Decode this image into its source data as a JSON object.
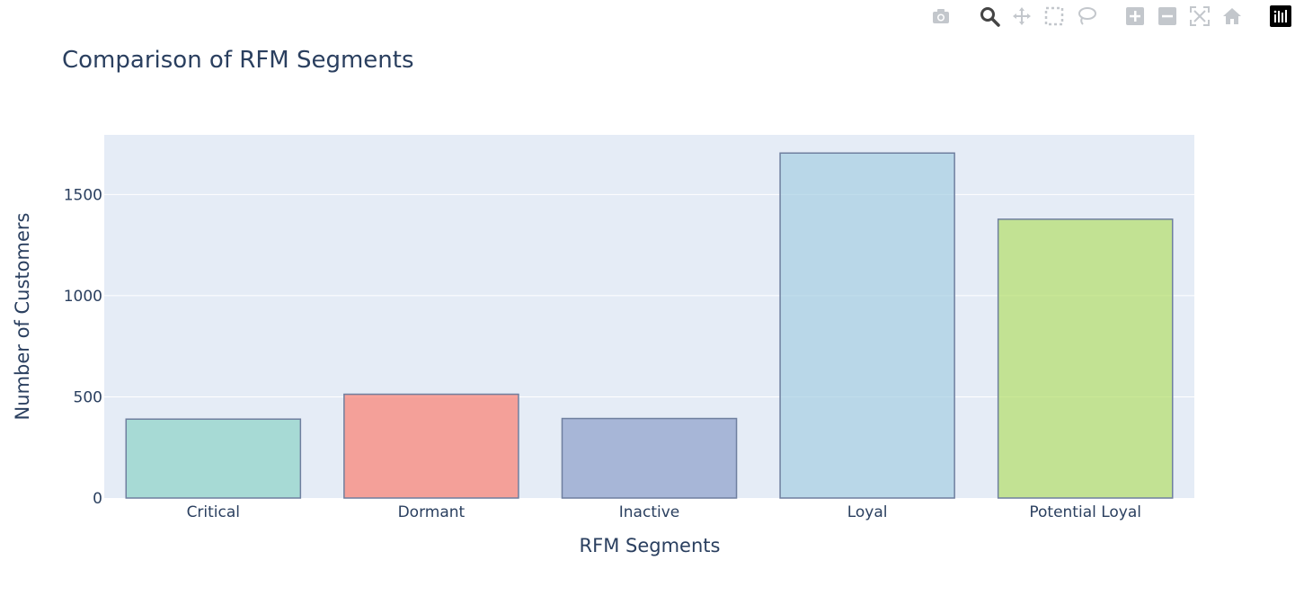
{
  "modebar": {
    "buttons": [
      {
        "name": "camera-icon",
        "title": "Download plot as a png"
      },
      {
        "name": "zoom-icon",
        "title": "Zoom",
        "active": true
      },
      {
        "name": "pan-icon",
        "title": "Pan"
      },
      {
        "name": "box-select-icon",
        "title": "Box Select"
      },
      {
        "name": "lasso-select-icon",
        "title": "Lasso Select"
      },
      {
        "name": "zoom-in-icon",
        "title": "Zoom in"
      },
      {
        "name": "zoom-out-icon",
        "title": "Zoom out"
      },
      {
        "name": "autoscale-icon",
        "title": "Autoscale"
      },
      {
        "name": "reset-axes-icon",
        "title": "Reset axes"
      },
      {
        "name": "plotly-logo-icon",
        "title": "Produced with Plotly"
      }
    ]
  },
  "chart_data": {
    "type": "bar",
    "title": "Comparison of RFM Segments",
    "xlabel": "RFM Segments",
    "ylabel": "Number of Customers",
    "categories": [
      "Critical",
      "Dormant",
      "Inactive",
      "Loyal",
      "Potential Loyal"
    ],
    "values": [
      390,
      513,
      393,
      1705,
      1378
    ],
    "colors": [
      "#8dd3c7",
      "#fb8072",
      "#8da0cb",
      "#a6cee3",
      "#b3de69"
    ],
    "bar_opacity": 0.7,
    "bar_outline_color": "#6f7f9f",
    "ylim": [
      0,
      1795
    ],
    "yticks": [
      0,
      500,
      1000,
      1500
    ],
    "plot_bgcolor": "#e5ecf6",
    "grid": true,
    "gridcolor": "#ffffff",
    "legend": "none"
  }
}
